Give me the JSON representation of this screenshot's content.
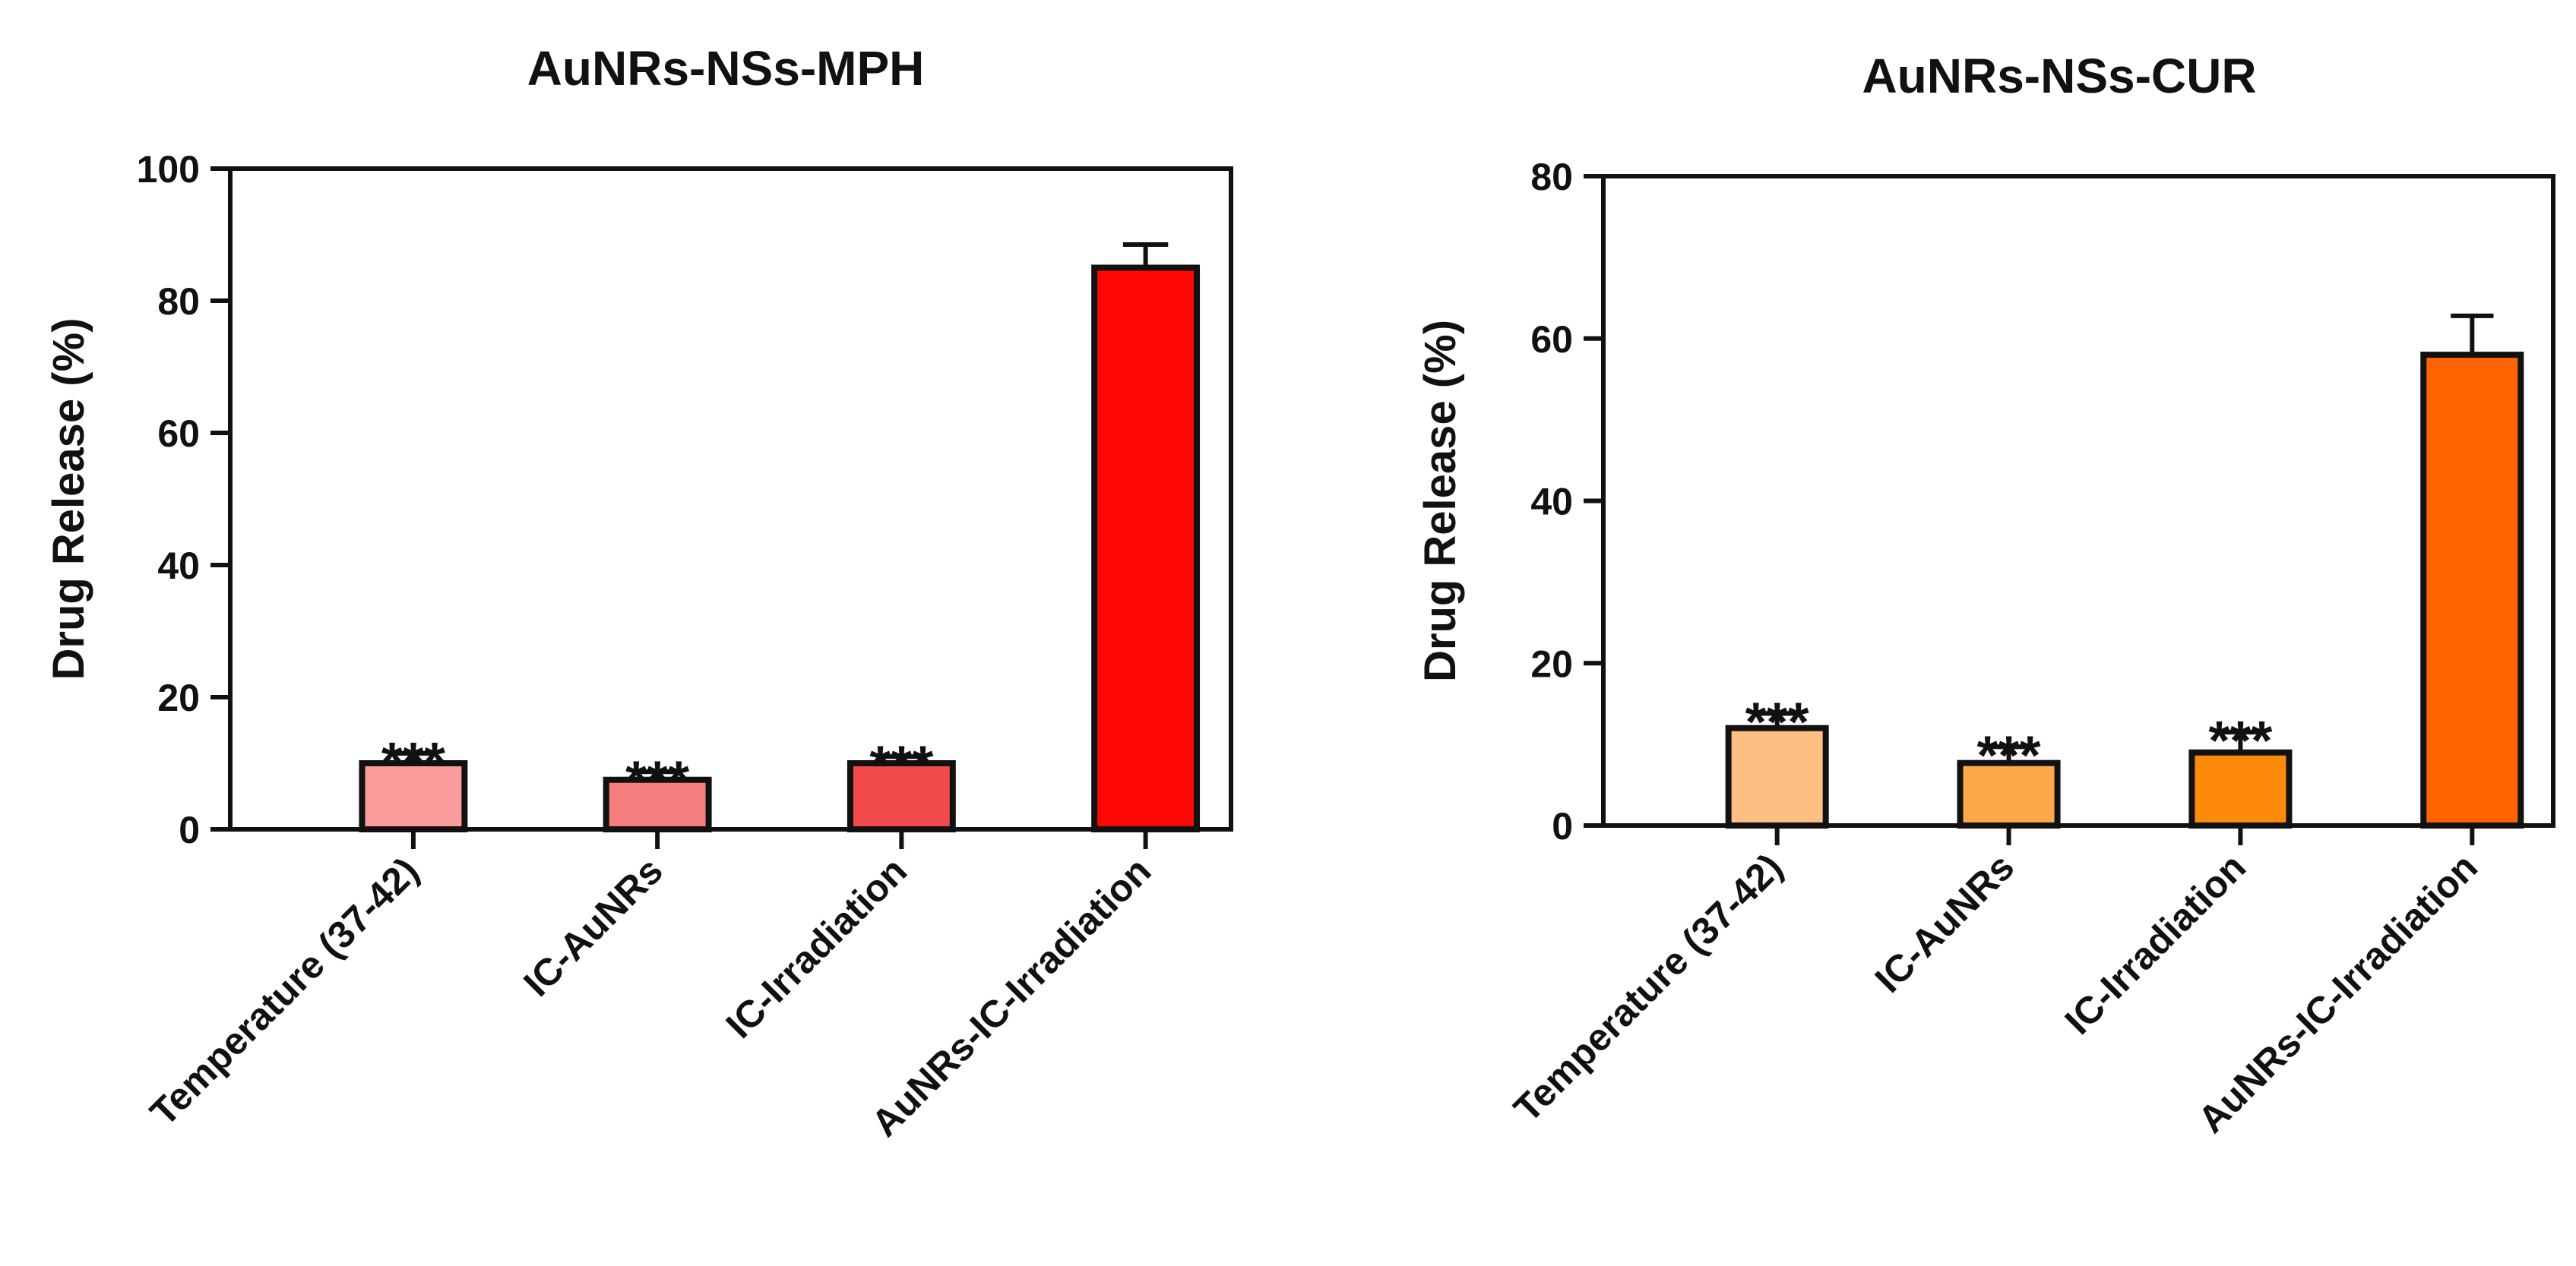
{
  "chart_data": [
    {
      "type": "bar",
      "title": "AuNRs-NSs-MPH",
      "ylabel": "Drug Release (%)",
      "xlabel": "",
      "ylim": [
        0,
        100
      ],
      "yticks": [
        "0",
        "20",
        "40",
        "60",
        "80",
        "100"
      ],
      "categories": [
        "Temperature (37-42)",
        "IC-AuNRs",
        "IC-Irradiation",
        "AuNRs-IC-Irradiation"
      ],
      "values": [
        10,
        7.5,
        10,
        85
      ],
      "errors": [
        1.5,
        1.2,
        1.0,
        3.5
      ],
      "significance": [
        "***",
        "***",
        "***",
        ""
      ],
      "colors": [
        "#fb9d9d",
        "#f57e7e",
        "#f24a4a",
        "#fc0606"
      ],
      "grid": false
    },
    {
      "type": "bar",
      "title": "AuNRs-NSs-CUR",
      "ylabel": "Drug Release (%)",
      "xlabel": "",
      "ylim": [
        0,
        80
      ],
      "yticks": [
        "0",
        "20",
        "40",
        "60",
        "80"
      ],
      "categories": [
        "Temperature (37-42)",
        "IC-AuNRs",
        "IC-Irradiation",
        "AuNRs-IC-Irradiation"
      ],
      "values": [
        12,
        7.7,
        9,
        58
      ],
      "errors": [
        1.8,
        2.0,
        2.5,
        4.8
      ],
      "significance": [
        "***",
        "***",
        "***",
        ""
      ],
      "colors": [
        "#fdc082",
        "#fca849",
        "#fd8a0a",
        "#ff6400"
      ],
      "grid": false
    }
  ]
}
